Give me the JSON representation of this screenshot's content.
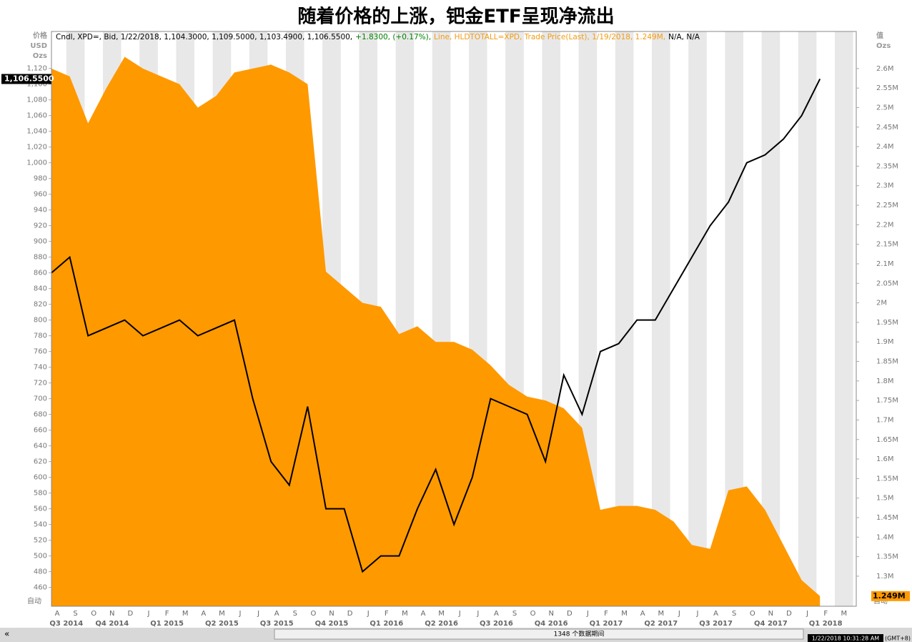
{
  "chart_data": {
    "type": "line-area",
    "title": "随着价格的上涨，钯金ETF呈现净流出",
    "header": [
      {
        "text": "Cndl, XPD=, Bid, 1/22/2018, 1,104.3000, 1,109.5000, 1,103.4900, 1,106.5500,",
        "color": "#000000"
      },
      {
        "text": "+1.8300, (+0.17%),",
        "color": "#008000"
      },
      {
        "text": "Line, HLDTOTALL=XPD, Trade Price(Last), 1/19/2018, 1.249M,",
        "color": "#f39c12"
      },
      {
        "text": "N/A, N/A",
        "color": "#000000"
      }
    ],
    "y_label": [
      "价格",
      "USD",
      "Ozs"
    ],
    "y2_label": [
      "值",
      "Ozs"
    ],
    "auto_label": "自动",
    "categories": [
      "A",
      "S",
      "O",
      "N",
      "D",
      "J",
      "F",
      "M",
      "A",
      "M",
      "J",
      "J",
      "A",
      "S",
      "O",
      "N",
      "D",
      "J",
      "F",
      "M",
      "A",
      "M",
      "J",
      "J",
      "A",
      "S",
      "O",
      "N",
      "D",
      "J",
      "F",
      "M",
      "A",
      "M",
      "J",
      "J",
      "A",
      "S",
      "O",
      "N",
      "D",
      "J",
      "F",
      "M"
    ],
    "quarters": [
      "Q3 2014",
      "Q4 2014",
      "Q1 2015",
      "Q2 2015",
      "Q3 2015",
      "Q4 2015",
      "Q1 2016",
      "Q2 2016",
      "Q3 2016",
      "Q4 2016",
      "Q1 2017",
      "Q2 2017",
      "Q3 2017",
      "Q4 2017",
      "Q1 2018"
    ],
    "series": [
      {
        "name": "HLDTOTALL=XPD",
        "color": "#ff9900",
        "axis": "y2",
        "values": [
          2.6,
          2.58,
          2.46,
          2.55,
          2.63,
          2.6,
          2.58,
          2.56,
          2.5,
          2.53,
          2.59,
          2.6,
          2.61,
          2.59,
          2.56,
          2.08,
          2.04,
          2.0,
          1.99,
          1.92,
          1.94,
          1.9,
          1.9,
          1.88,
          1.84,
          1.79,
          1.76,
          1.75,
          1.73,
          1.68,
          1.47,
          1.48,
          1.48,
          1.47,
          1.44,
          1.38,
          1.37,
          1.52,
          1.53,
          1.47,
          1.38,
          1.29,
          1.249,
          null
        ],
        "value_labels": [
          null,
          null,
          null,
          null,
          null,
          null,
          null,
          null,
          null,
          null,
          null,
          null,
          null,
          null,
          null,
          null,
          null,
          null,
          null,
          null,
          null,
          null,
          null,
          null,
          null,
          null,
          null,
          null,
          null,
          null,
          null,
          null,
          null,
          null,
          null,
          null,
          null,
          null,
          null,
          null,
          null,
          null,
          "1.249M",
          null
        ]
      },
      {
        "name": "XPD=",
        "color": "#000000",
        "values": [
          860,
          880,
          780,
          790,
          800,
          780,
          790,
          800,
          780,
          790,
          800,
          700,
          620,
          590,
          690,
          560,
          560,
          480,
          500,
          500,
          560,
          610,
          540,
          600,
          700,
          690,
          680,
          620,
          730,
          680,
          760,
          770,
          800,
          800,
          840,
          880,
          920,
          950,
          1000,
          1010,
          1030,
          1060,
          1106.55,
          null
        ],
        "value_labels": [
          null,
          null,
          null,
          null,
          null,
          null,
          null,
          null,
          null,
          null,
          null,
          null,
          null,
          null,
          null,
          null,
          null,
          null,
          null,
          null,
          null,
          null,
          null,
          null,
          null,
          null,
          null,
          null,
          null,
          null,
          null,
          null,
          null,
          null,
          null,
          null,
          null,
          null,
          null,
          null,
          null,
          null,
          "1,106.5500",
          null
        ]
      }
    ],
    "ylim": [
      436,
      1167
    ],
    "yticks": [
      460,
      480,
      500,
      520,
      540,
      560,
      580,
      600,
      620,
      640,
      660,
      680,
      700,
      720,
      740,
      760,
      780,
      800,
      820,
      840,
      860,
      880,
      900,
      920,
      940,
      960,
      980,
      {
        "value": 1000,
        "label": "1,000"
      },
      {
        "value": 1020,
        "label": "1,020"
      },
      {
        "value": 1040,
        "label": "1,040"
      },
      {
        "value": 1060,
        "label": "1,060"
      },
      {
        "value": 1080,
        "label": "1,080"
      },
      {
        "value": 1100,
        "label": "1,100"
      },
      {
        "value": 1120,
        "label": "1,120"
      }
    ],
    "y2lim": [
      1.223,
      2.695
    ],
    "y2ticks": [
      {
        "value": 1.3,
        "label": "1.3M"
      },
      {
        "value": 1.35,
        "label": "1.35M"
      },
      {
        "value": 1.4,
        "label": "1.4M"
      },
      {
        "value": 1.45,
        "label": "1.45M"
      },
      {
        "value": 1.5,
        "label": "1.5M"
      },
      {
        "value": 1.55,
        "label": "1.55M"
      },
      {
        "value": 1.6,
        "label": "1.6M"
      },
      {
        "value": 1.65,
        "label": "1.65M"
      },
      {
        "value": 1.7,
        "label": "1.7M"
      },
      {
        "value": 1.75,
        "label": "1.75M"
      },
      {
        "value": 1.8,
        "label": "1.8M"
      },
      {
        "value": 1.85,
        "label": "1.85M"
      },
      {
        "value": 1.9,
        "label": "1.9M"
      },
      {
        "value": 1.95,
        "label": "1.95M"
      },
      {
        "value": 2.0,
        "label": "2M"
      },
      {
        "value": 2.05,
        "label": "2.05M"
      },
      {
        "value": 2.1,
        "label": "2.1M"
      },
      {
        "value": 2.15,
        "label": "2.15M"
      },
      {
        "value": 2.2,
        "label": "2.2M"
      },
      {
        "value": 2.25,
        "label": "2.25M"
      },
      {
        "value": 2.3,
        "label": "2.3M"
      },
      {
        "value": 2.35,
        "label": "2.35M"
      },
      {
        "value": 2.4,
        "label": "2.4M"
      },
      {
        "value": 2.45,
        "label": "2.45M"
      },
      {
        "value": 2.5,
        "label": "2.5M"
      },
      {
        "value": 2.55,
        "label": "2.55M"
      },
      {
        "value": 2.6,
        "label": "2.6M"
      }
    ],
    "footer": {
      "periods": "1348 个数据期间",
      "timestamp": "1/22/2018 10:31:28 AM",
      "zone": "(GMT+8)"
    }
  }
}
